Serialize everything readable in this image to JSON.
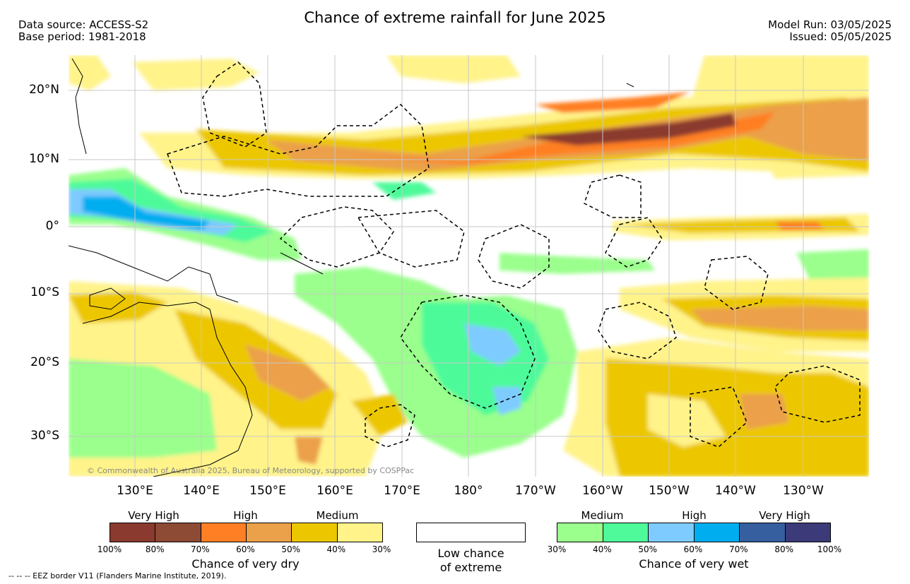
{
  "header": {
    "title": "Chance of extreme rainfall for June 2025",
    "data_source": "Data source: ACCESS-S2",
    "base_period": "Base period: 1981-2018",
    "model_run": "Model Run: 03/05/2025",
    "issued": "Issued: 05/05/2025"
  },
  "map": {
    "lat_labels": [
      "20°N",
      "10°N",
      "0°",
      "10°S",
      "20°S",
      "30°S"
    ],
    "lon_labels": [
      "130°E",
      "140°E",
      "150°E",
      "160°E",
      "170°E",
      "180°",
      "170°W",
      "160°W",
      "150°W",
      "140°W",
      "130°W"
    ],
    "copyright": "© Commonwealth of Australia 2025, Bureau of Meteorology, supported by COSPPac"
  },
  "legend": {
    "dry": {
      "levels": [
        "Very High",
        "High",
        "Medium"
      ],
      "ticks": [
        "100%",
        "80%",
        "70%",
        "60%",
        "50%",
        "40%",
        "30%"
      ],
      "colors": [
        "#8a3a2e",
        "#8d4a35",
        "#ff7f24",
        "#eba04a",
        "#ecc700",
        "#fff38a"
      ],
      "title": "Chance of very dry"
    },
    "low": {
      "line1": "Low chance",
      "line2": "of extreme"
    },
    "wet": {
      "levels": [
        "Medium",
        "High",
        "Very High"
      ],
      "ticks": [
        "30%",
        "40%",
        "50%",
        "60%",
        "70%",
        "80%",
        "100%"
      ],
      "colors": [
        "#9aff8c",
        "#4efa9a",
        "#7ecbff",
        "#00aef0",
        "#355f9f",
        "#3c3a78"
      ],
      "title": "Chance of very wet"
    }
  },
  "footer": {
    "eez": "--  --  -- EEZ border V11 (Flanders Marine Institute, 2019)."
  }
}
